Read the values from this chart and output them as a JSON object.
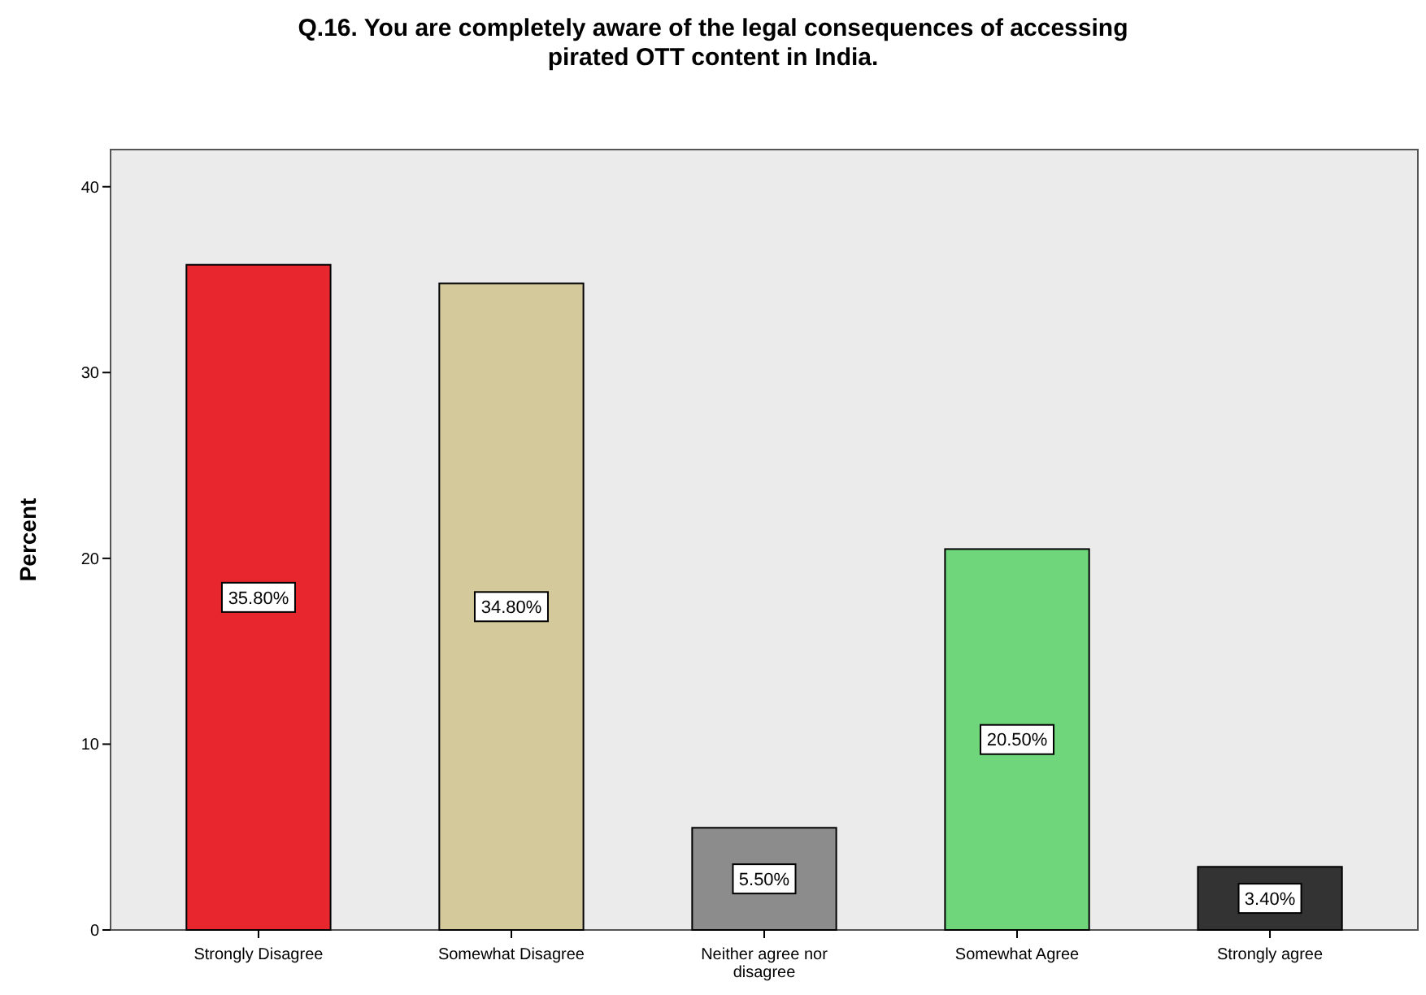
{
  "chart_data": {
    "type": "bar",
    "title": "Q.16. You are completely aware of the legal consequences of accessing pirated OTT content in India.",
    "ylabel": "Percent",
    "categories": [
      "Strongly Disagree",
      "Somewhat Disagree",
      "Neither agree nor disagree",
      "Somewhat Agree",
      "Strongly agree"
    ],
    "values": [
      35.8,
      34.8,
      5.5,
      20.5,
      3.4
    ],
    "colors": [
      "#e8262e",
      "#d4c99a",
      "#8c8c8c",
      "#6fd67c",
      "#333333"
    ],
    "value_labels": [
      "35.80%",
      "34.80%",
      "5.50%",
      "20.50%",
      "3.40%"
    ],
    "ylim": [
      0,
      42
    ],
    "yticks": [
      0,
      10,
      20,
      30,
      40
    ],
    "grid": false
  }
}
